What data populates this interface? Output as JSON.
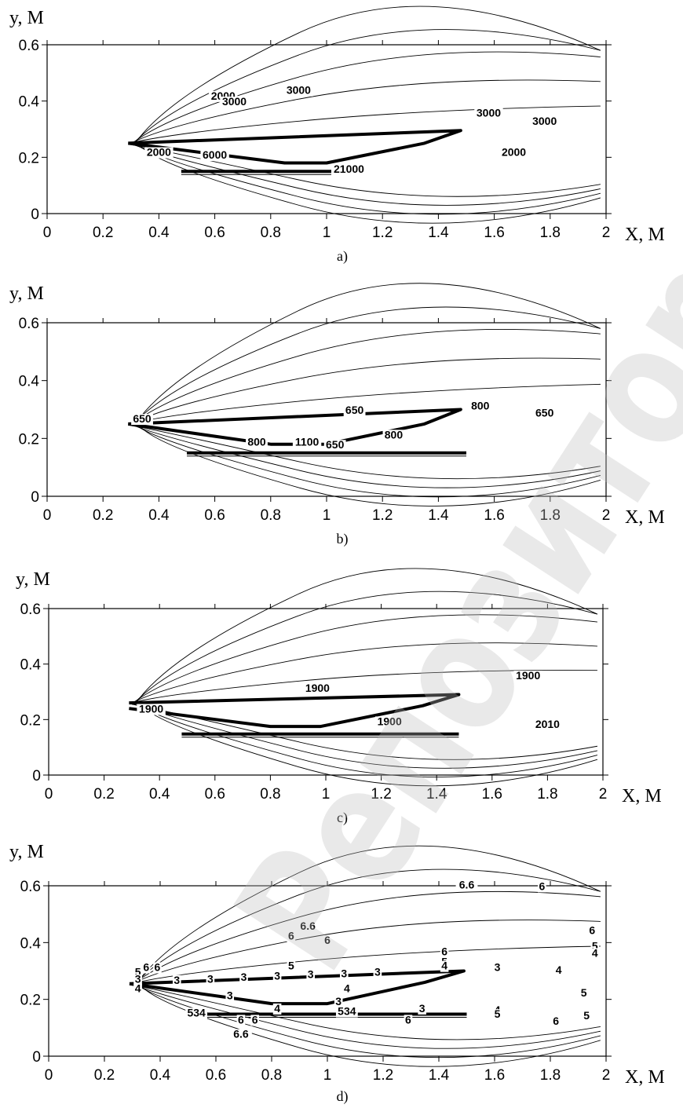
{
  "watermark": {
    "text": "Репозиторий Кар"
  },
  "axes": {
    "xlabel": "X, M",
    "ylabel": "y, M",
    "xticks": [
      "0",
      "0.2",
      "0.4",
      "0.6",
      "0.8",
      "1",
      "1.2",
      "1.4",
      "1.6",
      "1.8",
      "2"
    ],
    "yticks": [
      "0",
      "0.2",
      "0.4",
      "0.6"
    ]
  },
  "chart_data": [
    {
      "type": "line",
      "caption": "a)",
      "xlabel": "X, M",
      "ylabel": "y, M",
      "xlim": [
        0,
        2
      ],
      "ylim": [
        0,
        0.6
      ],
      "body_outline": [
        [
          0.29,
          0.25
        ],
        [
          1.48,
          0.295
        ],
        [
          1.35,
          0.25
        ],
        [
          1.0,
          0.18
        ],
        [
          0.85,
          0.18
        ],
        [
          0.29,
          0.25
        ]
      ],
      "plate": {
        "x": [
          0.48,
          1.1
        ],
        "y": 0.15
      },
      "contour_labels": [
        {
          "text": "2000",
          "x": 0.63,
          "y": 0.405
        },
        {
          "text": "3000",
          "x": 0.67,
          "y": 0.385
        },
        {
          "text": "3000",
          "x": 0.9,
          "y": 0.425
        },
        {
          "text": "3000",
          "x": 1.58,
          "y": 0.345
        },
        {
          "text": "3000",
          "x": 1.78,
          "y": 0.315
        },
        {
          "text": "2000",
          "x": 1.67,
          "y": 0.205
        },
        {
          "text": "2000",
          "x": 0.4,
          "y": 0.205
        },
        {
          "text": "6000",
          "x": 0.6,
          "y": 0.195
        },
        {
          "text": "21000",
          "x": 1.08,
          "y": 0.145
        }
      ]
    },
    {
      "type": "line",
      "caption": "b)",
      "xlabel": "X, M",
      "ylabel": "y, M",
      "xlim": [
        0,
        2
      ],
      "ylim": [
        0,
        0.6
      ],
      "body_outline": [
        [
          0.29,
          0.25
        ],
        [
          1.48,
          0.3
        ],
        [
          1.35,
          0.25
        ],
        [
          1.0,
          0.18
        ],
        [
          0.8,
          0.18
        ],
        [
          0.29,
          0.25
        ]
      ],
      "plate": {
        "x": [
          0.5,
          1.5
        ],
        "y": 0.15
      },
      "contour_labels": [
        {
          "text": "650",
          "x": 0.34,
          "y": 0.255
        },
        {
          "text": "650",
          "x": 1.1,
          "y": 0.285
        },
        {
          "text": "800",
          "x": 1.55,
          "y": 0.3
        },
        {
          "text": "650",
          "x": 1.78,
          "y": 0.275
        },
        {
          "text": "800",
          "x": 0.75,
          "y": 0.175
        },
        {
          "text": "1100",
          "x": 0.93,
          "y": 0.175
        },
        {
          "text": "650",
          "x": 1.03,
          "y": 0.165
        },
        {
          "text": "800",
          "x": 1.24,
          "y": 0.2
        }
      ]
    },
    {
      "type": "line",
      "caption": "c)",
      "xlabel": "X, M",
      "ylabel": "y, M",
      "xlim": [
        0,
        2
      ],
      "ylim": [
        0,
        0.6
      ],
      "body_outline": [
        [
          0.29,
          0.26
        ],
        [
          1.48,
          0.29
        ],
        [
          1.35,
          0.25
        ],
        [
          0.98,
          0.175
        ],
        [
          0.8,
          0.175
        ],
        [
          0.29,
          0.24
        ]
      ],
      "plate": {
        "x": [
          0.48,
          1.48
        ],
        "y": 0.148
      },
      "contour_labels": [
        {
          "text": "1900",
          "x": 0.97,
          "y": 0.3
        },
        {
          "text": "1900",
          "x": 1.73,
          "y": 0.345
        },
        {
          "text": "1900",
          "x": 0.37,
          "y": 0.225
        },
        {
          "text": "1900",
          "x": 1.23,
          "y": 0.18
        },
        {
          "text": "2010",
          "x": 1.8,
          "y": 0.17
        }
      ]
    },
    {
      "type": "line",
      "caption": "d)",
      "xlabel": "X, M",
      "ylabel": "y, M",
      "xlim": [
        0,
        2
      ],
      "ylim": [
        0,
        0.6
      ],
      "body_outline": [
        [
          0.29,
          0.255
        ],
        [
          1.49,
          0.3
        ],
        [
          1.35,
          0.26
        ],
        [
          1.0,
          0.185
        ],
        [
          0.8,
          0.185
        ],
        [
          0.29,
          0.255
        ]
      ],
      "plate": {
        "x": [
          0.5,
          1.5
        ],
        "y": 0.148
      },
      "contour_labels": [
        {
          "text": "6.6",
          "x": 1.5,
          "y": 0.59
        },
        {
          "text": "6",
          "x": 1.77,
          "y": 0.585
        },
        {
          "text": "6.6",
          "x": 0.93,
          "y": 0.445
        },
        {
          "text": "6",
          "x": 0.87,
          "y": 0.41
        },
        {
          "text": "6",
          "x": 1.0,
          "y": 0.395
        },
        {
          "text": "6",
          "x": 1.95,
          "y": 0.43
        },
        {
          "text": "6",
          "x": 1.42,
          "y": 0.355
        },
        {
          "text": "5",
          "x": 1.96,
          "y": 0.375
        },
        {
          "text": "4",
          "x": 1.96,
          "y": 0.35
        },
        {
          "text": "5",
          "x": 0.87,
          "y": 0.305
        },
        {
          "text": "5",
          "x": 1.42,
          "y": 0.32
        },
        {
          "text": "4",
          "x": 1.42,
          "y": 0.305
        },
        {
          "text": "6",
          "x": 0.35,
          "y": 0.3
        },
        {
          "text": "6",
          "x": 0.39,
          "y": 0.3
        },
        {
          "text": "5",
          "x": 0.32,
          "y": 0.283
        },
        {
          "text": "3",
          "x": 0.32,
          "y": 0.258
        },
        {
          "text": "4",
          "x": 0.32,
          "y": 0.225
        },
        {
          "text": "3",
          "x": 0.46,
          "y": 0.255
        },
        {
          "text": "3",
          "x": 0.58,
          "y": 0.258
        },
        {
          "text": "3",
          "x": 0.7,
          "y": 0.265
        },
        {
          "text": "3",
          "x": 0.82,
          "y": 0.27
        },
        {
          "text": "3",
          "x": 0.94,
          "y": 0.275
        },
        {
          "text": "3",
          "x": 1.06,
          "y": 0.278
        },
        {
          "text": "3",
          "x": 1.18,
          "y": 0.283
        },
        {
          "text": "3",
          "x": 1.61,
          "y": 0.3
        },
        {
          "text": "4",
          "x": 1.83,
          "y": 0.29
        },
        {
          "text": "3",
          "x": 0.65,
          "y": 0.2
        },
        {
          "text": "3",
          "x": 1.04,
          "y": 0.18
        },
        {
          "text": "4",
          "x": 0.82,
          "y": 0.155
        },
        {
          "text": "4",
          "x": 1.07,
          "y": 0.225
        },
        {
          "text": "5",
          "x": 1.92,
          "y": 0.21
        },
        {
          "text": "534",
          "x": 0.53,
          "y": 0.14
        },
        {
          "text": "534",
          "x": 1.07,
          "y": 0.145
        },
        {
          "text": "3",
          "x": 1.34,
          "y": 0.155
        },
        {
          "text": "4",
          "x": 1.61,
          "y": 0.15
        },
        {
          "text": "5",
          "x": 1.61,
          "y": 0.135
        },
        {
          "text": "6",
          "x": 0.69,
          "y": 0.115
        },
        {
          "text": "6",
          "x": 0.74,
          "y": 0.115
        },
        {
          "text": "6",
          "x": 1.29,
          "y": 0.115
        },
        {
          "text": "6",
          "x": 1.82,
          "y": 0.11
        },
        {
          "text": "5",
          "x": 1.93,
          "y": 0.13
        },
        {
          "text": "6.6",
          "x": 0.69,
          "y": 0.065
        }
      ]
    }
  ]
}
